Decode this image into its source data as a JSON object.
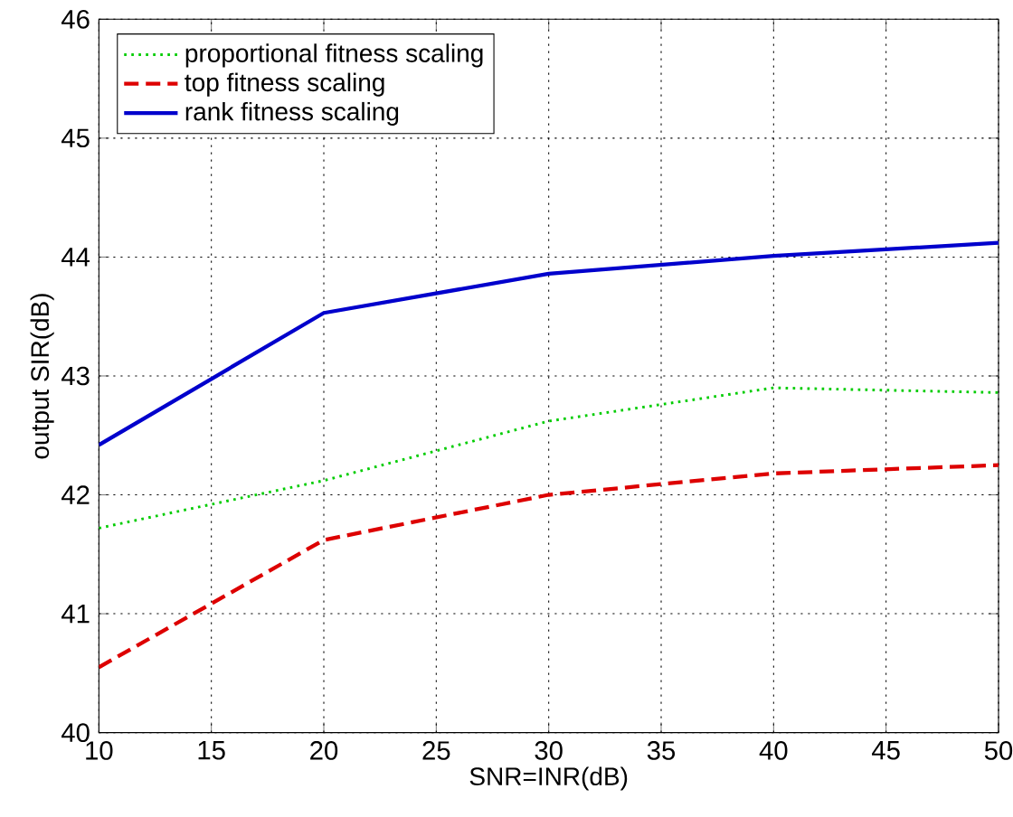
{
  "chart_data": {
    "type": "line",
    "xlabel": "SNR=INR(dB)",
    "ylabel": "output SIR(dB)",
    "x": [
      10,
      20,
      30,
      40,
      50
    ],
    "series": [
      {
        "name": "proportional fitness scaling",
        "color": "#00cc00",
        "line_style": "dotted",
        "values": [
          41.72,
          42.12,
          42.62,
          42.9,
          42.86
        ]
      },
      {
        "name": "top fitness scaling",
        "color": "#dd0000",
        "line_style": "dashed",
        "values": [
          40.55,
          41.62,
          42.0,
          42.18,
          42.25
        ]
      },
      {
        "name": "rank fitness scaling",
        "color": "#0000cc",
        "line_style": "solid",
        "values": [
          42.42,
          43.53,
          43.86,
          44.01,
          44.12
        ]
      }
    ],
    "xlim": [
      10,
      50
    ],
    "ylim": [
      40,
      46
    ],
    "xticks": [
      10,
      15,
      20,
      25,
      30,
      35,
      40,
      45,
      50
    ],
    "yticks": [
      40,
      41,
      42,
      43,
      44,
      45,
      46
    ],
    "grid": true,
    "legend": "top left",
    "marker": "none"
  }
}
